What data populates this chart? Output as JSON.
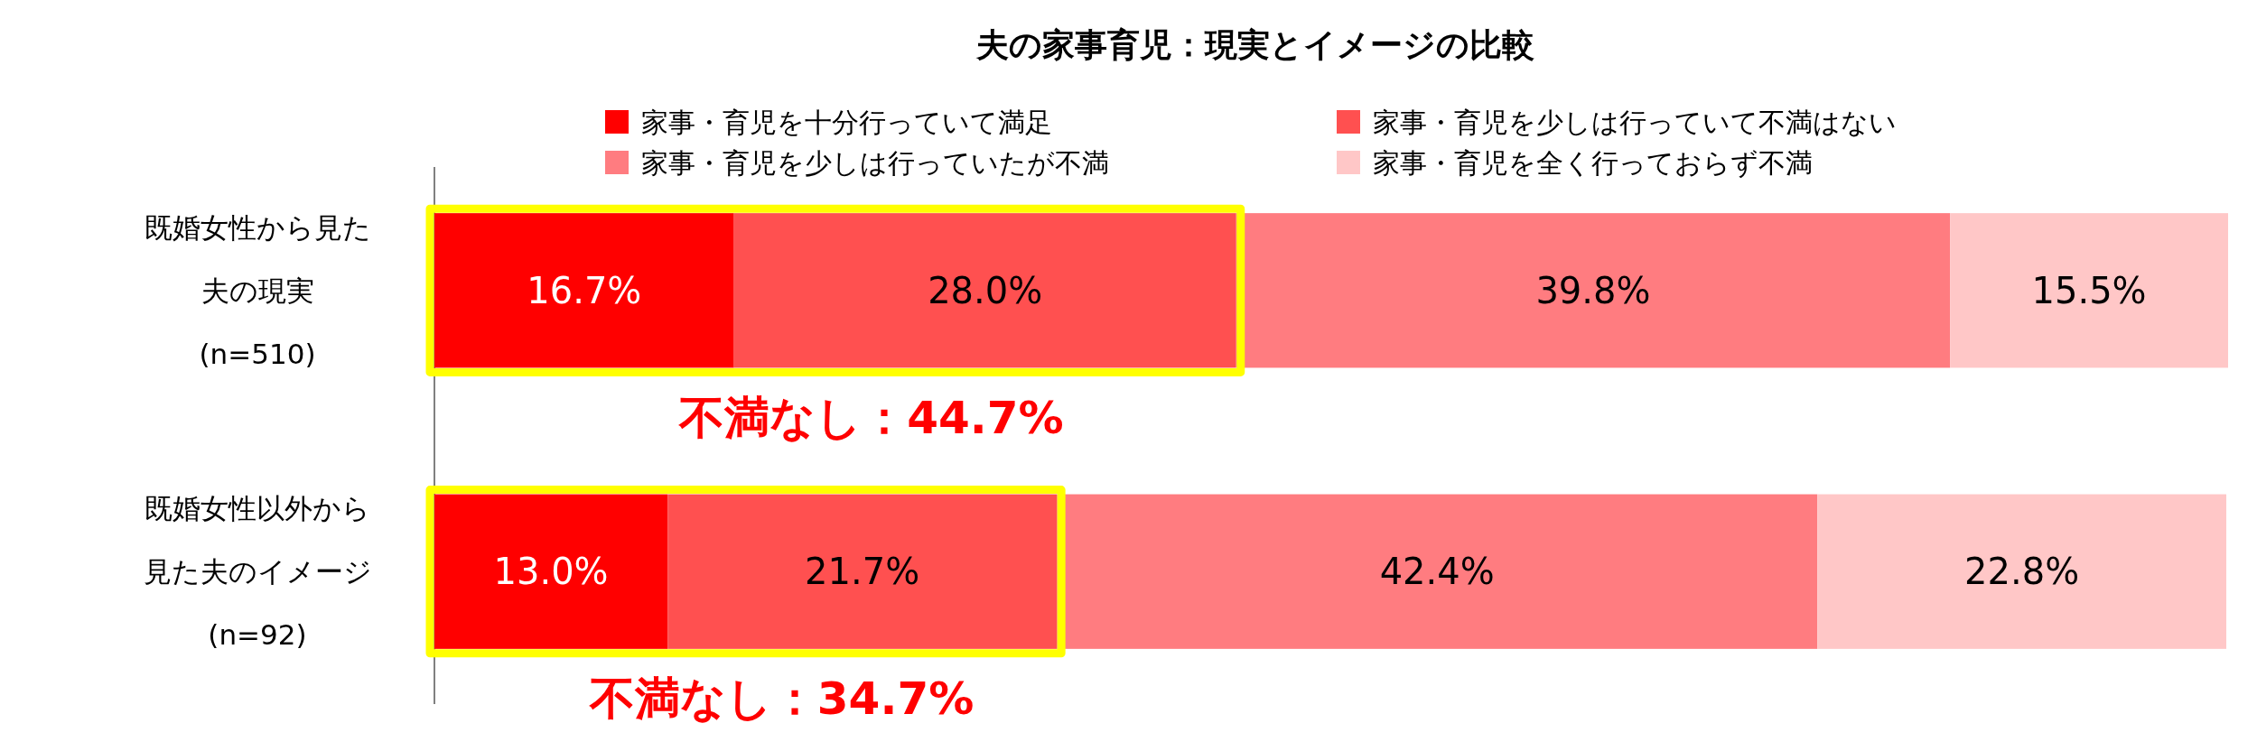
{
  "chart_data": {
    "type": "bar",
    "orientation": "horizontal",
    "stacked": true,
    "title": "夫の家事育児：現実とイメージの比較",
    "categories": [
      "既婚女性から見た夫の現実(n=510)",
      "既婚女性以外から見た夫のイメージ(n=92)"
    ],
    "series": [
      {
        "name": "家事・育児を十分行っていて満足",
        "color": "#ff0000",
        "values": [
          16.7,
          13.0
        ],
        "value_labels": [
          "16.7%",
          "13.0%"
        ]
      },
      {
        "name": "家事・育児を少しは行っていて不満はない",
        "color": "#ff5050",
        "values": [
          28.0,
          21.7
        ],
        "value_labels": [
          "28.0%",
          "21.7%"
        ]
      },
      {
        "name": "家事・育児を少しは行っていたが不満",
        "color": "#ff7c80",
        "values": [
          39.8,
          42.4
        ],
        "value_labels": [
          "39.8%",
          "42.4%"
        ]
      },
      {
        "name": "家事・育児を全く行っておらず不満",
        "color": "#ffc7c7",
        "values": [
          15.5,
          22.8
        ],
        "value_labels": [
          "15.5%",
          "22.8%"
        ]
      }
    ],
    "tick_labels": "y",
    "legend": "top",
    "annotations": [
      "不満なし：44.7%",
      "不満なし：34.7%"
    ]
  }
}
